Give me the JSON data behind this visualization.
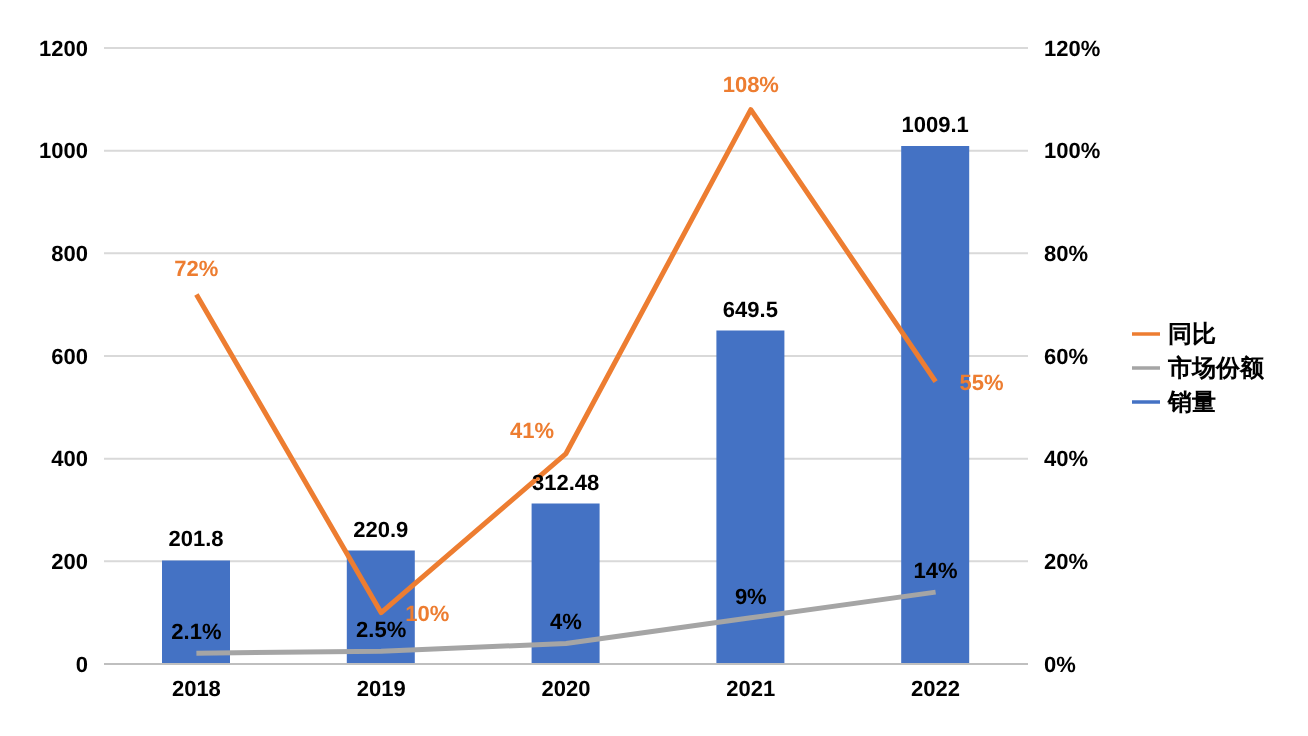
{
  "chart_data": {
    "type": "bar",
    "categories": [
      "2018",
      "2019",
      "2020",
      "2021",
      "2022"
    ],
    "series": [
      {
        "name": "销量",
        "color": "#4472c4",
        "values": [
          201.8,
          220.9,
          312.48,
          649.5,
          1009.1
        ],
        "value_labels": [
          "201.8",
          "220.9",
          "312.48",
          "649.5",
          "1009.1"
        ]
      },
      {
        "name": "同比",
        "type": "line",
        "axis": "y2",
        "color": "#ed7d31",
        "values": [
          72,
          10,
          41,
          108,
          55
        ],
        "value_labels": [
          "72%",
          "10%",
          "41%",
          "108%",
          "55%"
        ]
      },
      {
        "name": "市场份额",
        "type": "line",
        "axis": "y2",
        "color": "#a5a5a5",
        "values": [
          2.1,
          2.5,
          4,
          9,
          14
        ],
        "value_labels": [
          "2.1%",
          "2.5%",
          "4%",
          "9%",
          "14%"
        ]
      }
    ],
    "ylim": [
      0,
      1200
    ],
    "yticks": [
      0,
      200,
      400,
      600,
      800,
      1000,
      1200
    ],
    "y2lim": [
      0,
      120
    ],
    "y2ticks": [
      {
        "value": 0,
        "label": "0%"
      },
      {
        "value": 20,
        "label": "20%"
      },
      {
        "value": 40,
        "label": "40%"
      },
      {
        "value": 60,
        "label": "60%"
      },
      {
        "value": 80,
        "label": "80%"
      },
      {
        "value": 100,
        "label": "100%"
      },
      {
        "value": 120,
        "label": "120%"
      }
    ],
    "grid": "y",
    "legend": "right",
    "marker": "none",
    "line_style": "solid"
  }
}
